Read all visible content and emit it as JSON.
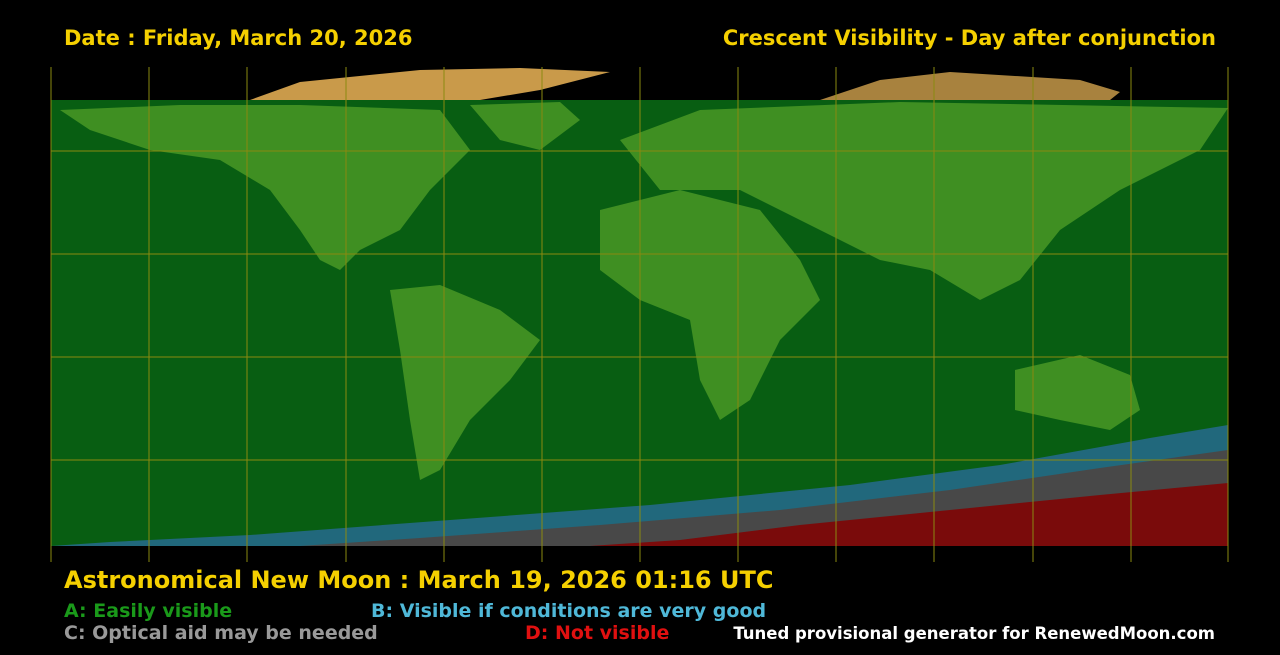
{
  "header": {
    "date": "Date : Friday, March 20, 2026",
    "title": "Crescent Visibility - Day after conjunction"
  },
  "footer": {
    "new_moon": "Astronomical New Moon : March 19, 2026 01:16 UTC",
    "legend": [
      {
        "label": "A: Easily visible"
      },
      {
        "label": "B: Visible if conditions are very good"
      },
      {
        "label": "C: Optical aid may be needed"
      },
      {
        "label": "D: Not visible"
      }
    ],
    "credit": "Tuned provisional generator for RenewedMoon.com"
  }
}
